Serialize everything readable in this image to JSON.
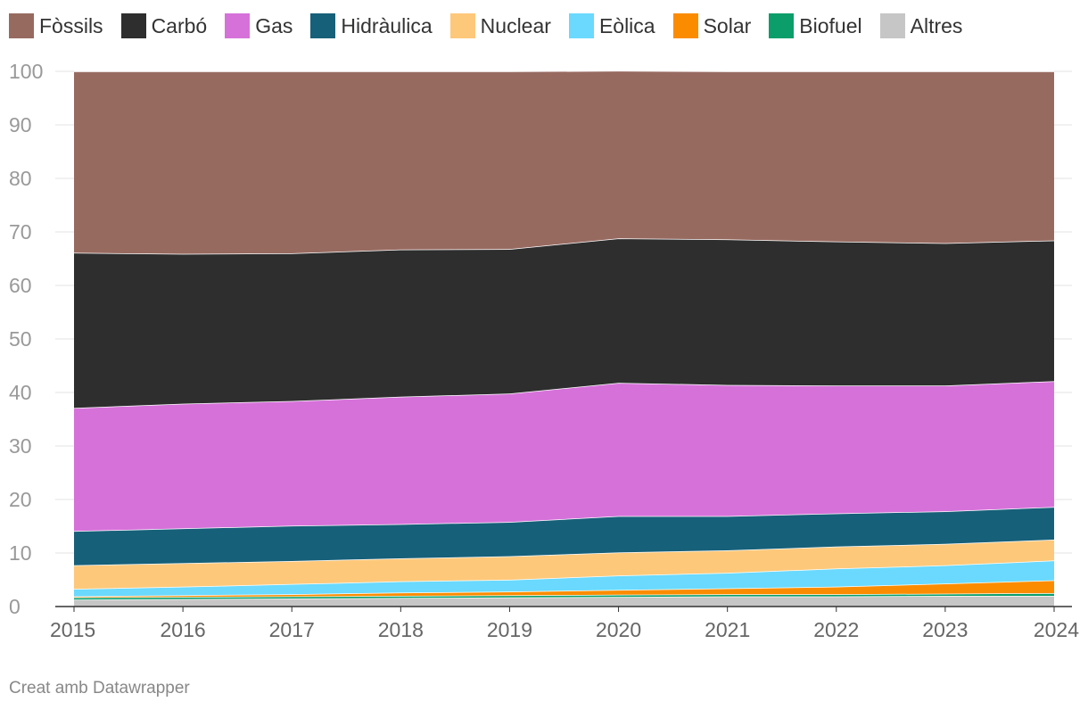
{
  "credit": "Creat amb Datawrapper",
  "chart_data": {
    "type": "area",
    "stacked": true,
    "x": [
      2015,
      2016,
      2017,
      2018,
      2019,
      2020,
      2021,
      2022,
      2023,
      2024
    ],
    "ylim": [
      0,
      100
    ],
    "yticks": [
      0,
      10,
      20,
      30,
      40,
      50,
      60,
      70,
      80,
      90,
      100
    ],
    "grid": true,
    "legend_position": "top-left",
    "series": [
      {
        "name": "Altres",
        "color": "#c6c6c6",
        "values": [
          1.3,
          1.4,
          1.5,
          1.6,
          1.7,
          1.8,
          1.9,
          1.9,
          2.0,
          2.0
        ]
      },
      {
        "name": "Biofuel",
        "color": "#0b9e6b",
        "values": [
          0.4,
          0.4,
          0.4,
          0.4,
          0.4,
          0.4,
          0.4,
          0.4,
          0.4,
          0.5
        ]
      },
      {
        "name": "Solar",
        "color": "#fb8c00",
        "values": [
          0.2,
          0.3,
          0.4,
          0.6,
          0.7,
          0.9,
          1.1,
          1.4,
          1.9,
          2.4
        ]
      },
      {
        "name": "Eòlica",
        "color": "#6ad9fd",
        "values": [
          1.4,
          1.6,
          1.9,
          2.1,
          2.2,
          2.7,
          2.9,
          3.4,
          3.4,
          3.7
        ]
      },
      {
        "name": "Nuclear",
        "color": "#fec87a",
        "values": [
          4.4,
          4.4,
          4.3,
          4.3,
          4.4,
          4.3,
          4.2,
          4.1,
          4.0,
          3.9
        ]
      },
      {
        "name": "Hidràulica",
        "color": "#176079",
        "values": [
          6.4,
          6.5,
          6.6,
          6.4,
          6.4,
          6.8,
          6.4,
          6.2,
          6.1,
          6.1
        ]
      },
      {
        "name": "Gas",
        "color": "#d671d9",
        "values": [
          23.0,
          23.3,
          23.3,
          23.8,
          24.0,
          24.9,
          24.5,
          23.9,
          23.5,
          23.5
        ]
      },
      {
        "name": "Carbó",
        "color": "#2e2e2e",
        "values": [
          29.0,
          28.0,
          27.6,
          27.5,
          27.0,
          27.0,
          27.2,
          26.9,
          26.6,
          26.3
        ]
      },
      {
        "name": "Fòssils",
        "color": "#976a60",
        "values": [
          33.9,
          34.1,
          34.0,
          33.3,
          33.2,
          31.3,
          31.4,
          31.8,
          32.1,
          31.6
        ]
      }
    ]
  }
}
